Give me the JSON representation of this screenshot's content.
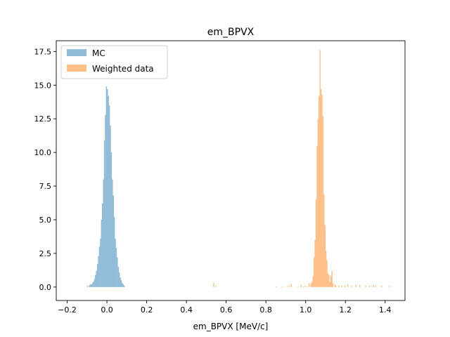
{
  "chart_data": {
    "type": "histogram",
    "title": "em_BPVX",
    "xlabel": "em_BPVX [MeV/c]",
    "ylabel": "",
    "xlim": [
      -0.255,
      1.5
    ],
    "ylim": [
      -1.0,
      18.3
    ],
    "xticks": [
      "−0.2",
      "0.0",
      "0.2",
      "0.4",
      "0.6",
      "0.8",
      "1.0",
      "1.2",
      "1.4"
    ],
    "xtick_values": [
      -0.2,
      0.0,
      0.2,
      0.4,
      0.6,
      0.8,
      1.0,
      1.2,
      1.4
    ],
    "yticks": [
      "0.0",
      "2.5",
      "5.0",
      "7.5",
      "10.0",
      "12.5",
      "15.0",
      "17.5"
    ],
    "ytick_values": [
      0.0,
      2.5,
      5.0,
      7.5,
      10.0,
      12.5,
      15.0,
      17.5
    ],
    "grid": false,
    "legend_position": "upper-left",
    "series": [
      {
        "name": "MC",
        "color": "#1f77b4",
        "alpha": 0.5,
        "bins": [
          [
            -0.1,
            -0.095,
            0.1
          ],
          [
            -0.09,
            -0.085,
            0.15
          ],
          [
            -0.085,
            -0.08,
            0.2
          ],
          [
            -0.08,
            -0.075,
            0.2
          ],
          [
            -0.075,
            -0.07,
            0.3
          ],
          [
            -0.07,
            -0.065,
            0.4
          ],
          [
            -0.065,
            -0.06,
            0.6
          ],
          [
            -0.06,
            -0.055,
            0.9
          ],
          [
            -0.055,
            -0.05,
            1.2
          ],
          [
            -0.05,
            -0.045,
            1.7
          ],
          [
            -0.045,
            -0.04,
            2.3
          ],
          [
            -0.04,
            -0.035,
            3.0
          ],
          [
            -0.035,
            -0.03,
            3.6
          ],
          [
            -0.03,
            -0.025,
            5.0
          ],
          [
            -0.025,
            -0.02,
            6.2
          ],
          [
            -0.02,
            -0.015,
            8.0
          ],
          [
            -0.015,
            -0.01,
            10.9
          ],
          [
            -0.01,
            -0.005,
            12.8
          ],
          [
            -0.005,
            0.0,
            14.9
          ],
          [
            0.0,
            0.005,
            14.7
          ],
          [
            0.005,
            0.01,
            14.2
          ],
          [
            0.01,
            0.015,
            13.5
          ],
          [
            0.015,
            0.02,
            12.0
          ],
          [
            0.02,
            0.025,
            10.0
          ],
          [
            0.025,
            0.03,
            8.0
          ],
          [
            0.03,
            0.035,
            6.8
          ],
          [
            0.035,
            0.04,
            5.2
          ],
          [
            0.04,
            0.045,
            3.6
          ],
          [
            0.045,
            0.05,
            2.9
          ],
          [
            0.05,
            0.055,
            2.2
          ],
          [
            0.055,
            0.06,
            1.5
          ],
          [
            0.06,
            0.065,
            1.1
          ],
          [
            0.065,
            0.07,
            0.7
          ],
          [
            0.07,
            0.075,
            0.5
          ],
          [
            0.075,
            0.08,
            0.3
          ],
          [
            0.08,
            0.085,
            0.2
          ],
          [
            0.085,
            0.09,
            0.1
          ]
        ]
      },
      {
        "name": "Weighted data",
        "color": "#ff7f0e",
        "alpha": 0.5,
        "bins": [
          [
            0.535,
            0.54,
            0.3
          ],
          [
            0.545,
            0.55,
            0.1
          ],
          [
            0.85,
            0.855,
            0.05
          ],
          [
            0.88,
            0.885,
            0.05
          ],
          [
            0.905,
            0.91,
            0.05
          ],
          [
            0.915,
            0.92,
            0.1
          ],
          [
            0.925,
            0.93,
            0.2
          ],
          [
            0.96,
            0.965,
            0.05
          ],
          [
            0.975,
            0.98,
            0.15
          ],
          [
            0.985,
            0.99,
            0.05
          ],
          [
            0.995,
            1.0,
            0.1
          ],
          [
            1.005,
            1.01,
            0.05
          ],
          [
            1.015,
            1.02,
            0.3
          ],
          [
            1.025,
            1.03,
            0.3
          ],
          [
            1.03,
            1.035,
            0.4
          ],
          [
            1.035,
            1.04,
            0.8
          ],
          [
            1.04,
            1.045,
            2.2
          ],
          [
            1.045,
            1.05,
            3.5
          ],
          [
            1.05,
            1.055,
            6.5
          ],
          [
            1.055,
            1.06,
            10.5
          ],
          [
            1.06,
            1.065,
            12.5
          ],
          [
            1.065,
            1.07,
            14.2
          ],
          [
            1.07,
            1.075,
            17.6
          ],
          [
            1.075,
            1.08,
            14.7
          ],
          [
            1.08,
            1.085,
            14.3
          ],
          [
            1.085,
            1.09,
            12.7
          ],
          [
            1.09,
            1.095,
            6.9
          ],
          [
            1.095,
            1.1,
            4.6
          ],
          [
            1.1,
            1.105,
            2.7
          ],
          [
            1.105,
            1.11,
            2.0
          ],
          [
            1.11,
            1.115,
            1.0
          ],
          [
            1.115,
            1.12,
            0.9
          ],
          [
            1.12,
            1.125,
            0.4
          ],
          [
            1.125,
            1.13,
            0.8
          ],
          [
            1.13,
            1.135,
            1.2
          ],
          [
            1.135,
            1.14,
            0.3
          ],
          [
            1.145,
            1.15,
            0.2
          ],
          [
            1.15,
            1.155,
            0.1
          ],
          [
            1.165,
            1.17,
            0.1
          ],
          [
            1.18,
            1.185,
            0.1
          ],
          [
            1.195,
            1.2,
            0.1
          ],
          [
            1.21,
            1.215,
            0.2
          ],
          [
            1.23,
            1.235,
            0.1
          ],
          [
            1.25,
            1.255,
            0.15
          ],
          [
            1.27,
            1.275,
            0.15
          ],
          [
            1.3,
            1.305,
            0.1
          ],
          [
            1.32,
            1.325,
            0.1
          ],
          [
            1.34,
            1.345,
            0.15
          ],
          [
            1.35,
            1.355,
            0.1
          ],
          [
            1.38,
            1.385,
            0.1
          ],
          [
            1.42,
            1.425,
            0.1
          ]
        ]
      }
    ]
  }
}
